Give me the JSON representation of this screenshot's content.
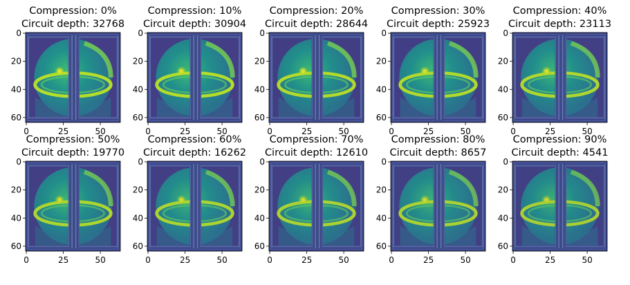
{
  "figure": {
    "colormap": "viridis",
    "background_color": "#ffffff"
  },
  "chart_data": [
    {
      "type": "heatmap",
      "title": [
        "Compression: 0%",
        "Circuit depth: 32768"
      ],
      "compression_percent": 0,
      "circuit_depth": 32768,
      "xlim": [
        0,
        63
      ],
      "ylim": [
        63,
        0
      ],
      "xticks": [
        0,
        25,
        50
      ],
      "yticks": [
        0,
        20,
        40,
        60
      ],
      "image_size": [
        64,
        64
      ]
    },
    {
      "type": "heatmap",
      "title": [
        "Compression: 10%",
        "Circuit depth: 30904"
      ],
      "compression_percent": 10,
      "circuit_depth": 30904,
      "xlim": [
        0,
        63
      ],
      "ylim": [
        63,
        0
      ],
      "xticks": [
        0,
        25,
        50
      ],
      "yticks": [
        0,
        20,
        40,
        60
      ],
      "image_size": [
        64,
        64
      ]
    },
    {
      "type": "heatmap",
      "title": [
        "Compression: 20%",
        "Circuit depth: 28644"
      ],
      "compression_percent": 20,
      "circuit_depth": 28644,
      "xlim": [
        0,
        63
      ],
      "ylim": [
        63,
        0
      ],
      "xticks": [
        0,
        25,
        50
      ],
      "yticks": [
        0,
        20,
        40,
        60
      ],
      "image_size": [
        64,
        64
      ]
    },
    {
      "type": "heatmap",
      "title": [
        "Compression: 30%",
        "Circuit depth: 25923"
      ],
      "compression_percent": 30,
      "circuit_depth": 25923,
      "xlim": [
        0,
        63
      ],
      "ylim": [
        63,
        0
      ],
      "xticks": [
        0,
        25,
        50
      ],
      "yticks": [
        0,
        20,
        40,
        60
      ],
      "image_size": [
        64,
        64
      ]
    },
    {
      "type": "heatmap",
      "title": [
        "Compression: 40%",
        "Circuit depth: 23113"
      ],
      "compression_percent": 40,
      "circuit_depth": 23113,
      "xlim": [
        0,
        63
      ],
      "ylim": [
        63,
        0
      ],
      "xticks": [
        0,
        25,
        50
      ],
      "yticks": [
        0,
        20,
        40,
        60
      ],
      "image_size": [
        64,
        64
      ]
    },
    {
      "type": "heatmap",
      "title": [
        "Compression: 50%",
        "Circuit depth: 19770"
      ],
      "compression_percent": 50,
      "circuit_depth": 19770,
      "xlim": [
        0,
        63
      ],
      "ylim": [
        63,
        0
      ],
      "xticks": [
        0,
        25,
        50
      ],
      "yticks": [
        0,
        20,
        40,
        60
      ],
      "image_size": [
        64,
        64
      ]
    },
    {
      "type": "heatmap",
      "title": [
        "Compression: 60%",
        "Circuit depth: 16262"
      ],
      "compression_percent": 60,
      "circuit_depth": 16262,
      "xlim": [
        0,
        63
      ],
      "ylim": [
        63,
        0
      ],
      "xticks": [
        0,
        25,
        50
      ],
      "yticks": [
        0,
        20,
        40,
        60
      ],
      "image_size": [
        64,
        64
      ]
    },
    {
      "type": "heatmap",
      "title": [
        "Compression: 70%",
        "Circuit depth: 12610"
      ],
      "compression_percent": 70,
      "circuit_depth": 12610,
      "xlim": [
        0,
        63
      ],
      "ylim": [
        63,
        0
      ],
      "xticks": [
        0,
        25,
        50
      ],
      "yticks": [
        0,
        20,
        40,
        60
      ],
      "image_size": [
        64,
        64
      ]
    },
    {
      "type": "heatmap",
      "title": [
        "Compression: 80%",
        "Circuit depth: 8657"
      ],
      "compression_percent": 80,
      "circuit_depth": 8657,
      "xlim": [
        0,
        63
      ],
      "ylim": [
        63,
        0
      ],
      "xticks": [
        0,
        25,
        50
      ],
      "yticks": [
        0,
        20,
        40,
        60
      ],
      "image_size": [
        64,
        64
      ]
    },
    {
      "type": "heatmap",
      "title": [
        "Compression: 90%",
        "Circuit depth: 4541"
      ],
      "compression_percent": 90,
      "circuit_depth": 4541,
      "xlim": [
        0,
        63
      ],
      "ylim": [
        63,
        0
      ],
      "xticks": [
        0,
        25,
        50
      ],
      "yticks": [
        0,
        20,
        40,
        60
      ],
      "image_size": [
        64,
        64
      ]
    }
  ]
}
